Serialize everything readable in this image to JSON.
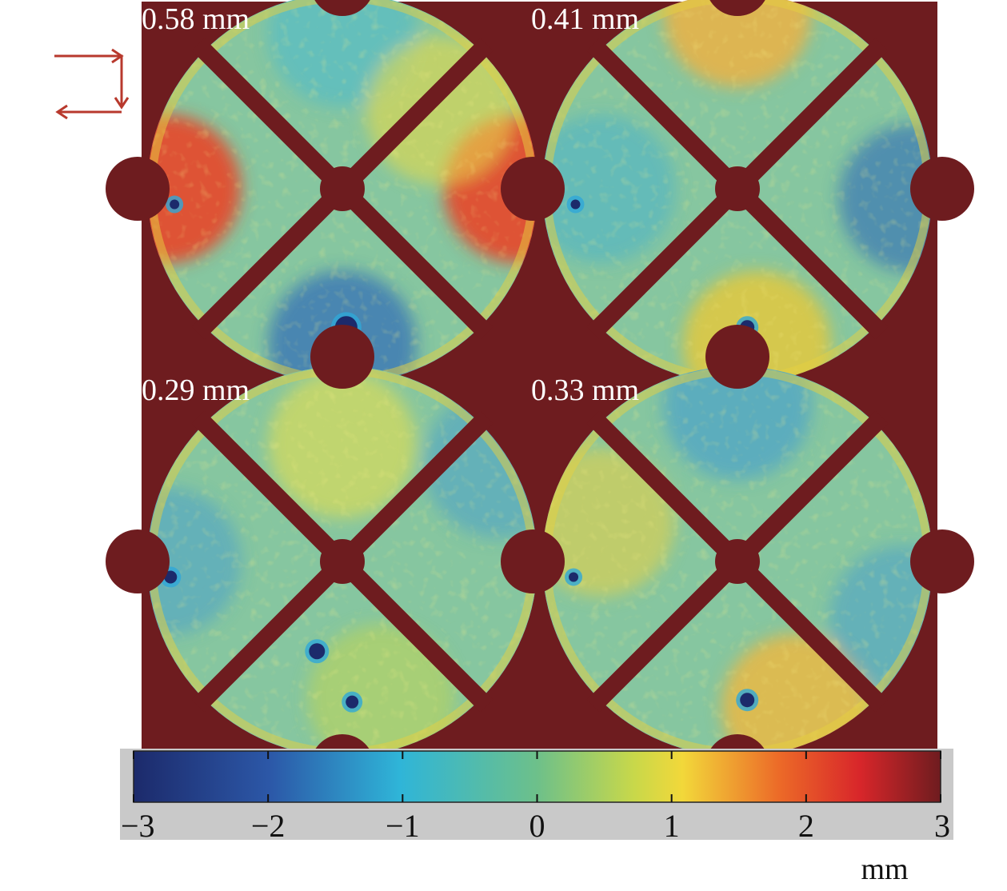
{
  "chart_data": {
    "type": "heatmap",
    "panels": [
      {
        "label": "0.58 mm",
        "rms_mm": 0.58
      },
      {
        "label": "0.41 mm",
        "rms_mm": 0.41
      },
      {
        "label": "0.29 mm",
        "rms_mm": 0.29
      },
      {
        "label": "0.33 mm",
        "rms_mm": 0.33
      }
    ],
    "colorbar": {
      "min": -3,
      "max": 3,
      "ticks": [
        -3,
        -2,
        -1,
        0,
        1,
        2,
        3
      ],
      "tick_labels": [
        "−3",
        "−2",
        "−1",
        "0",
        "1",
        "2",
        "3"
      ],
      "unit": "mm",
      "colormap": "jet"
    },
    "background_color": "#6e1c1f",
    "annotation": "scan-direction-arrow"
  }
}
